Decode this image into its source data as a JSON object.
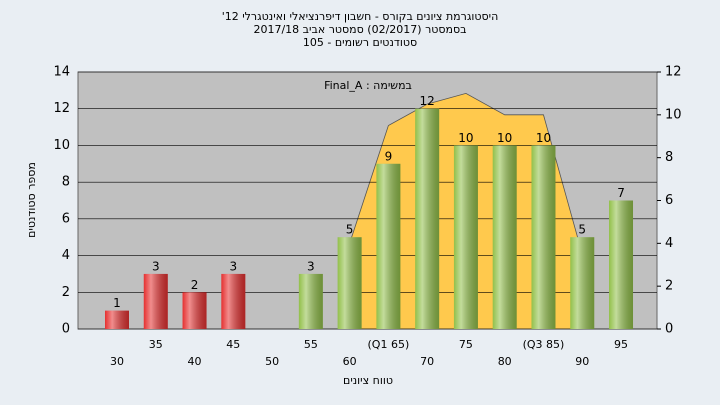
{
  "chart_data": {
    "type": "bar",
    "title_lines": [
      "היסטוגרמת ציונים בקורס - חשבון דיפרנציאלי ואינטגרלי 12'",
      "בסמסטר  (02/2017)  סמסטר אביב 2017/18",
      "סטודנטים רשומים - 105"
    ],
    "annotation": "במשימה : Final_A",
    "ylabel": "מספר סטודנטים",
    "xlabel": "טווח ציונים",
    "categories": [
      "30",
      "35",
      "40",
      "45",
      "50",
      "55",
      "60",
      "(Q1 65)",
      "70",
      "75",
      "80",
      "(Q3 85)",
      "90",
      "95"
    ],
    "series": [
      {
        "color": "#e53030",
        "values": [
          1,
          3,
          2,
          3,
          null,
          null,
          null,
          null,
          null,
          null,
          null,
          null,
          null,
          null
        ]
      },
      {
        "color": "#92c04a",
        "values": [
          null,
          null,
          null,
          null,
          null,
          3,
          5,
          9,
          12,
          10,
          10,
          10,
          5,
          7
        ]
      }
    ],
    "area": {
      "color": "#ffc94d",
      "axis": "y2",
      "values": [
        null,
        null,
        null,
        null,
        null,
        null,
        4,
        9.5,
        10.5,
        11,
        10,
        10,
        3.5,
        null
      ]
    },
    "ylim": [
      0,
      14
    ],
    "yticks": [
      0,
      2,
      4,
      6,
      8,
      10,
      12,
      14
    ],
    "y2lim": [
      0,
      12
    ],
    "y2ticks": [
      0,
      2,
      4,
      6,
      8,
      10,
      12
    ],
    "grid": true
  }
}
